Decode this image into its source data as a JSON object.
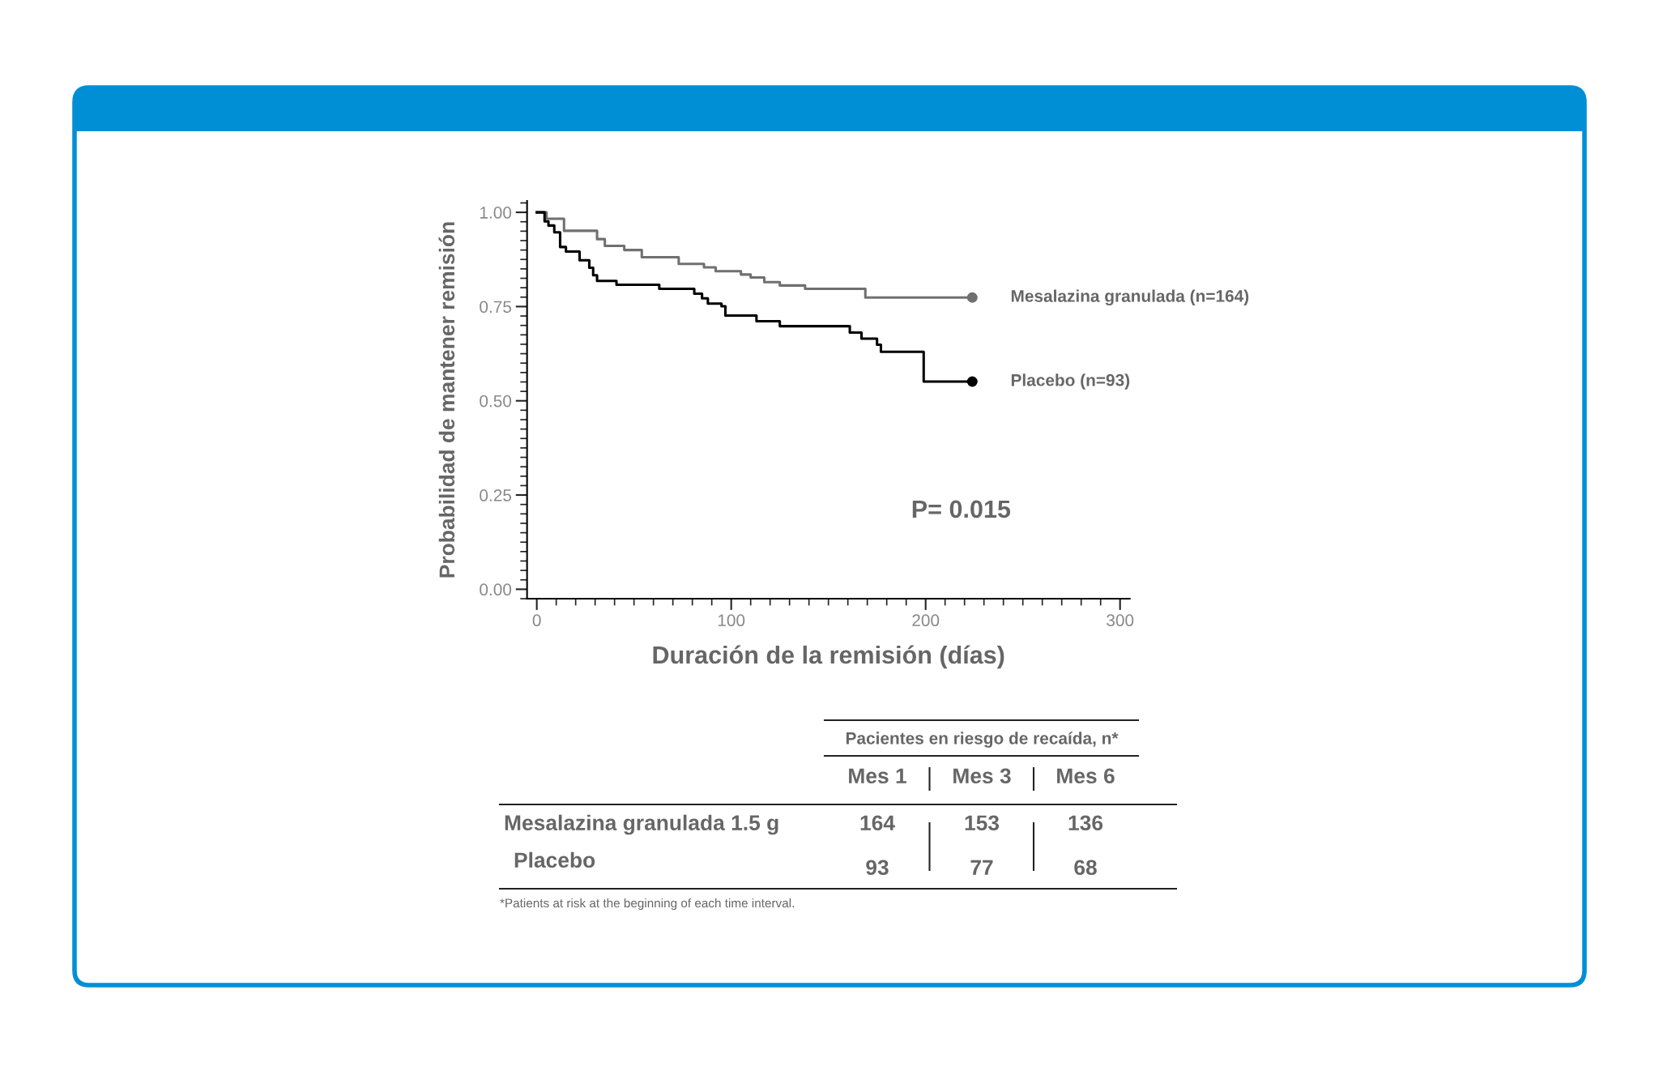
{
  "chart_data": [
    {
      "type": "step",
      "xlabel": "Duración de la remisión (días)",
      "ylabel": "Probabilidad de mantener remisión",
      "xlim": [
        -5,
        305
      ],
      "xticks": [
        0,
        100,
        200,
        300
      ],
      "ylim": [
        -0.025,
        1.03
      ],
      "yticks": [
        {
          "value": 0,
          "label": "0.00"
        },
        {
          "value": 0.25,
          "label": "0.25"
        },
        {
          "value": 0.5,
          "label": "0.50"
        },
        {
          "value": 0.75,
          "label": "0.75"
        },
        {
          "value": 1,
          "label": "1.00"
        }
      ],
      "grid": false,
      "series": [
        {
          "name": "Mesalazina granulada (n=164)",
          "color": "#707070",
          "x": [
            0,
            5,
            14,
            31,
            35,
            45,
            54,
            73,
            86,
            92,
            105,
            110,
            117,
            125,
            138,
            169,
            224
          ],
          "values": [
            1.0,
            0.983,
            0.951,
            0.929,
            0.911,
            0.9,
            0.881,
            0.863,
            0.854,
            0.844,
            0.835,
            0.827,
            0.815,
            0.806,
            0.797,
            0.774,
            0.774
          ]
        },
        {
          "name": "Placebo (n=93)",
          "color": "#000000",
          "x": [
            0,
            4,
            6,
            9,
            12,
            15,
            22,
            27,
            29,
            31,
            41,
            63,
            81,
            85,
            88,
            95,
            97,
            113,
            125,
            161,
            167,
            175,
            177,
            199,
            224
          ],
          "values": [
            1.0,
            0.976,
            0.965,
            0.947,
            0.908,
            0.896,
            0.873,
            0.853,
            0.833,
            0.818,
            0.808,
            0.797,
            0.784,
            0.772,
            0.758,
            0.751,
            0.726,
            0.711,
            0.698,
            0.681,
            0.665,
            0.649,
            0.63,
            0.551,
            0.551
          ]
        },
        {
          "type": "scatter",
          "color": "#707070",
          "x": [
            224
          ],
          "values": [
            0.774
          ]
        },
        {
          "type": "scatter",
          "color": "#000000",
          "x": [
            224
          ],
          "values": [
            0.551
          ]
        }
      ],
      "annotations": [
        "P= 0.015"
      ]
    },
    {
      "type": "other",
      "title": "Pacientes en riesgo de recaída, n*",
      "categories": [
        "Mes 1",
        "Mes 3",
        "Mes 6"
      ],
      "data_labels": true,
      "series": [
        {
          "name": "Mesalazina granulada 1.5 g",
          "values": [
            164,
            153,
            136
          ]
        },
        {
          "name": "Placebo",
          "values": [
            93,
            77,
            68
          ]
        }
      ],
      "annotations": [
        "*Patients at risk at the beginning of each time interval."
      ]
    }
  ]
}
